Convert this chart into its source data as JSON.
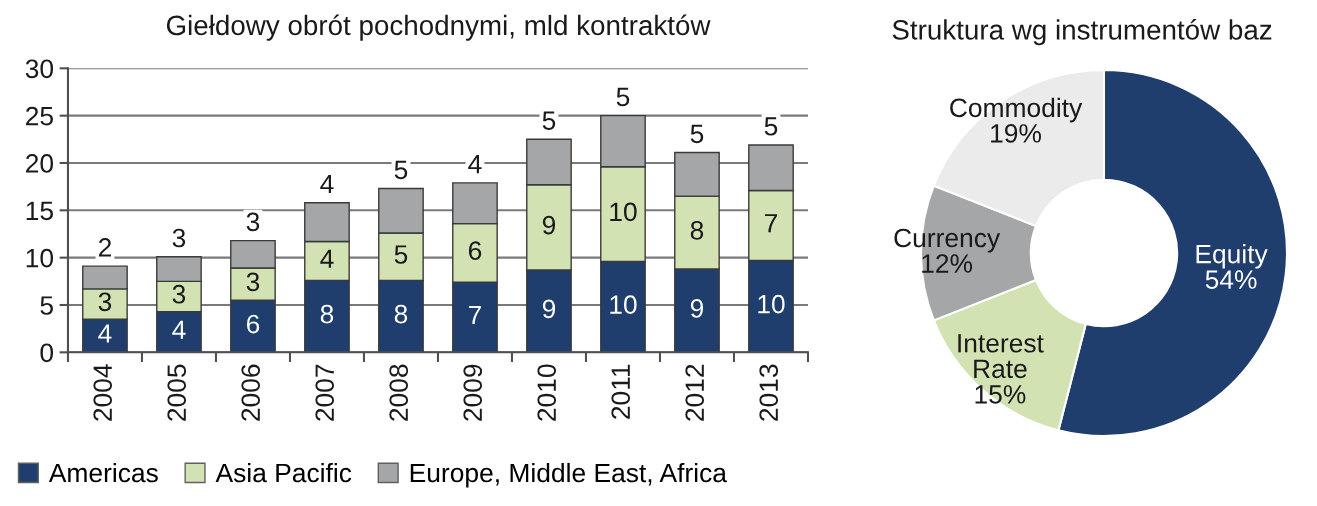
{
  "chart_data": [
    {
      "type": "bar",
      "title": "Giełdowy obrót pochodnymi, mld kontraktów",
      "categories": [
        "2004",
        "2005",
        "2006",
        "2007",
        "2008",
        "2009",
        "2010",
        "2011",
        "2012",
        "2013"
      ],
      "stacked": true,
      "series": [
        {
          "name": "Americas",
          "color": "#1f3e6e",
          "values": [
            3.5,
            4.3,
            5.5,
            7.6,
            7.6,
            7.4,
            8.7,
            9.6,
            8.8,
            9.7
          ],
          "value_labels": [
            "4",
            "4",
            "6",
            "8",
            "8",
            "7",
            "9",
            "10",
            "9",
            "10"
          ]
        },
        {
          "name": "Asia Pacific",
          "color": "#d2e2b3",
          "values": [
            3.2,
            3.2,
            3.4,
            4.1,
            5.0,
            6.2,
            9.0,
            10.0,
            7.7,
            7.4
          ],
          "value_labels": [
            "3",
            "3",
            "3",
            "4",
            "5",
            "6",
            "9",
            "10",
            "8",
            "7"
          ]
        },
        {
          "name": "Europe, Middle East, Africa",
          "color": "#a5a6a8",
          "values": [
            2.4,
            2.6,
            2.9,
            4.1,
            4.7,
            4.3,
            4.8,
            5.4,
            4.6,
            4.8
          ],
          "value_labels": [
            "2",
            "3",
            "3",
            "4",
            "5",
            "4",
            "5",
            "5",
            "5",
            "5"
          ]
        }
      ],
      "ylim": [
        0,
        30
      ],
      "yticks": [
        0,
        5,
        10,
        15,
        20,
        25,
        30
      ],
      "grid": "y",
      "legend": "bottom"
    },
    {
      "type": "donut",
      "title": "Struktura wg instrumentów baz",
      "categories": [
        "Equity",
        "Interest Rate",
        "Currency",
        "Commodity"
      ],
      "values": [
        54,
        15,
        12,
        19
      ],
      "colors": [
        "#1f3e6e",
        "#d2e2b3",
        "#a5a6a8",
        "#ebebeb"
      ],
      "value_labels": [
        "54%",
        "15%",
        "12%",
        "19%"
      ]
    }
  ]
}
